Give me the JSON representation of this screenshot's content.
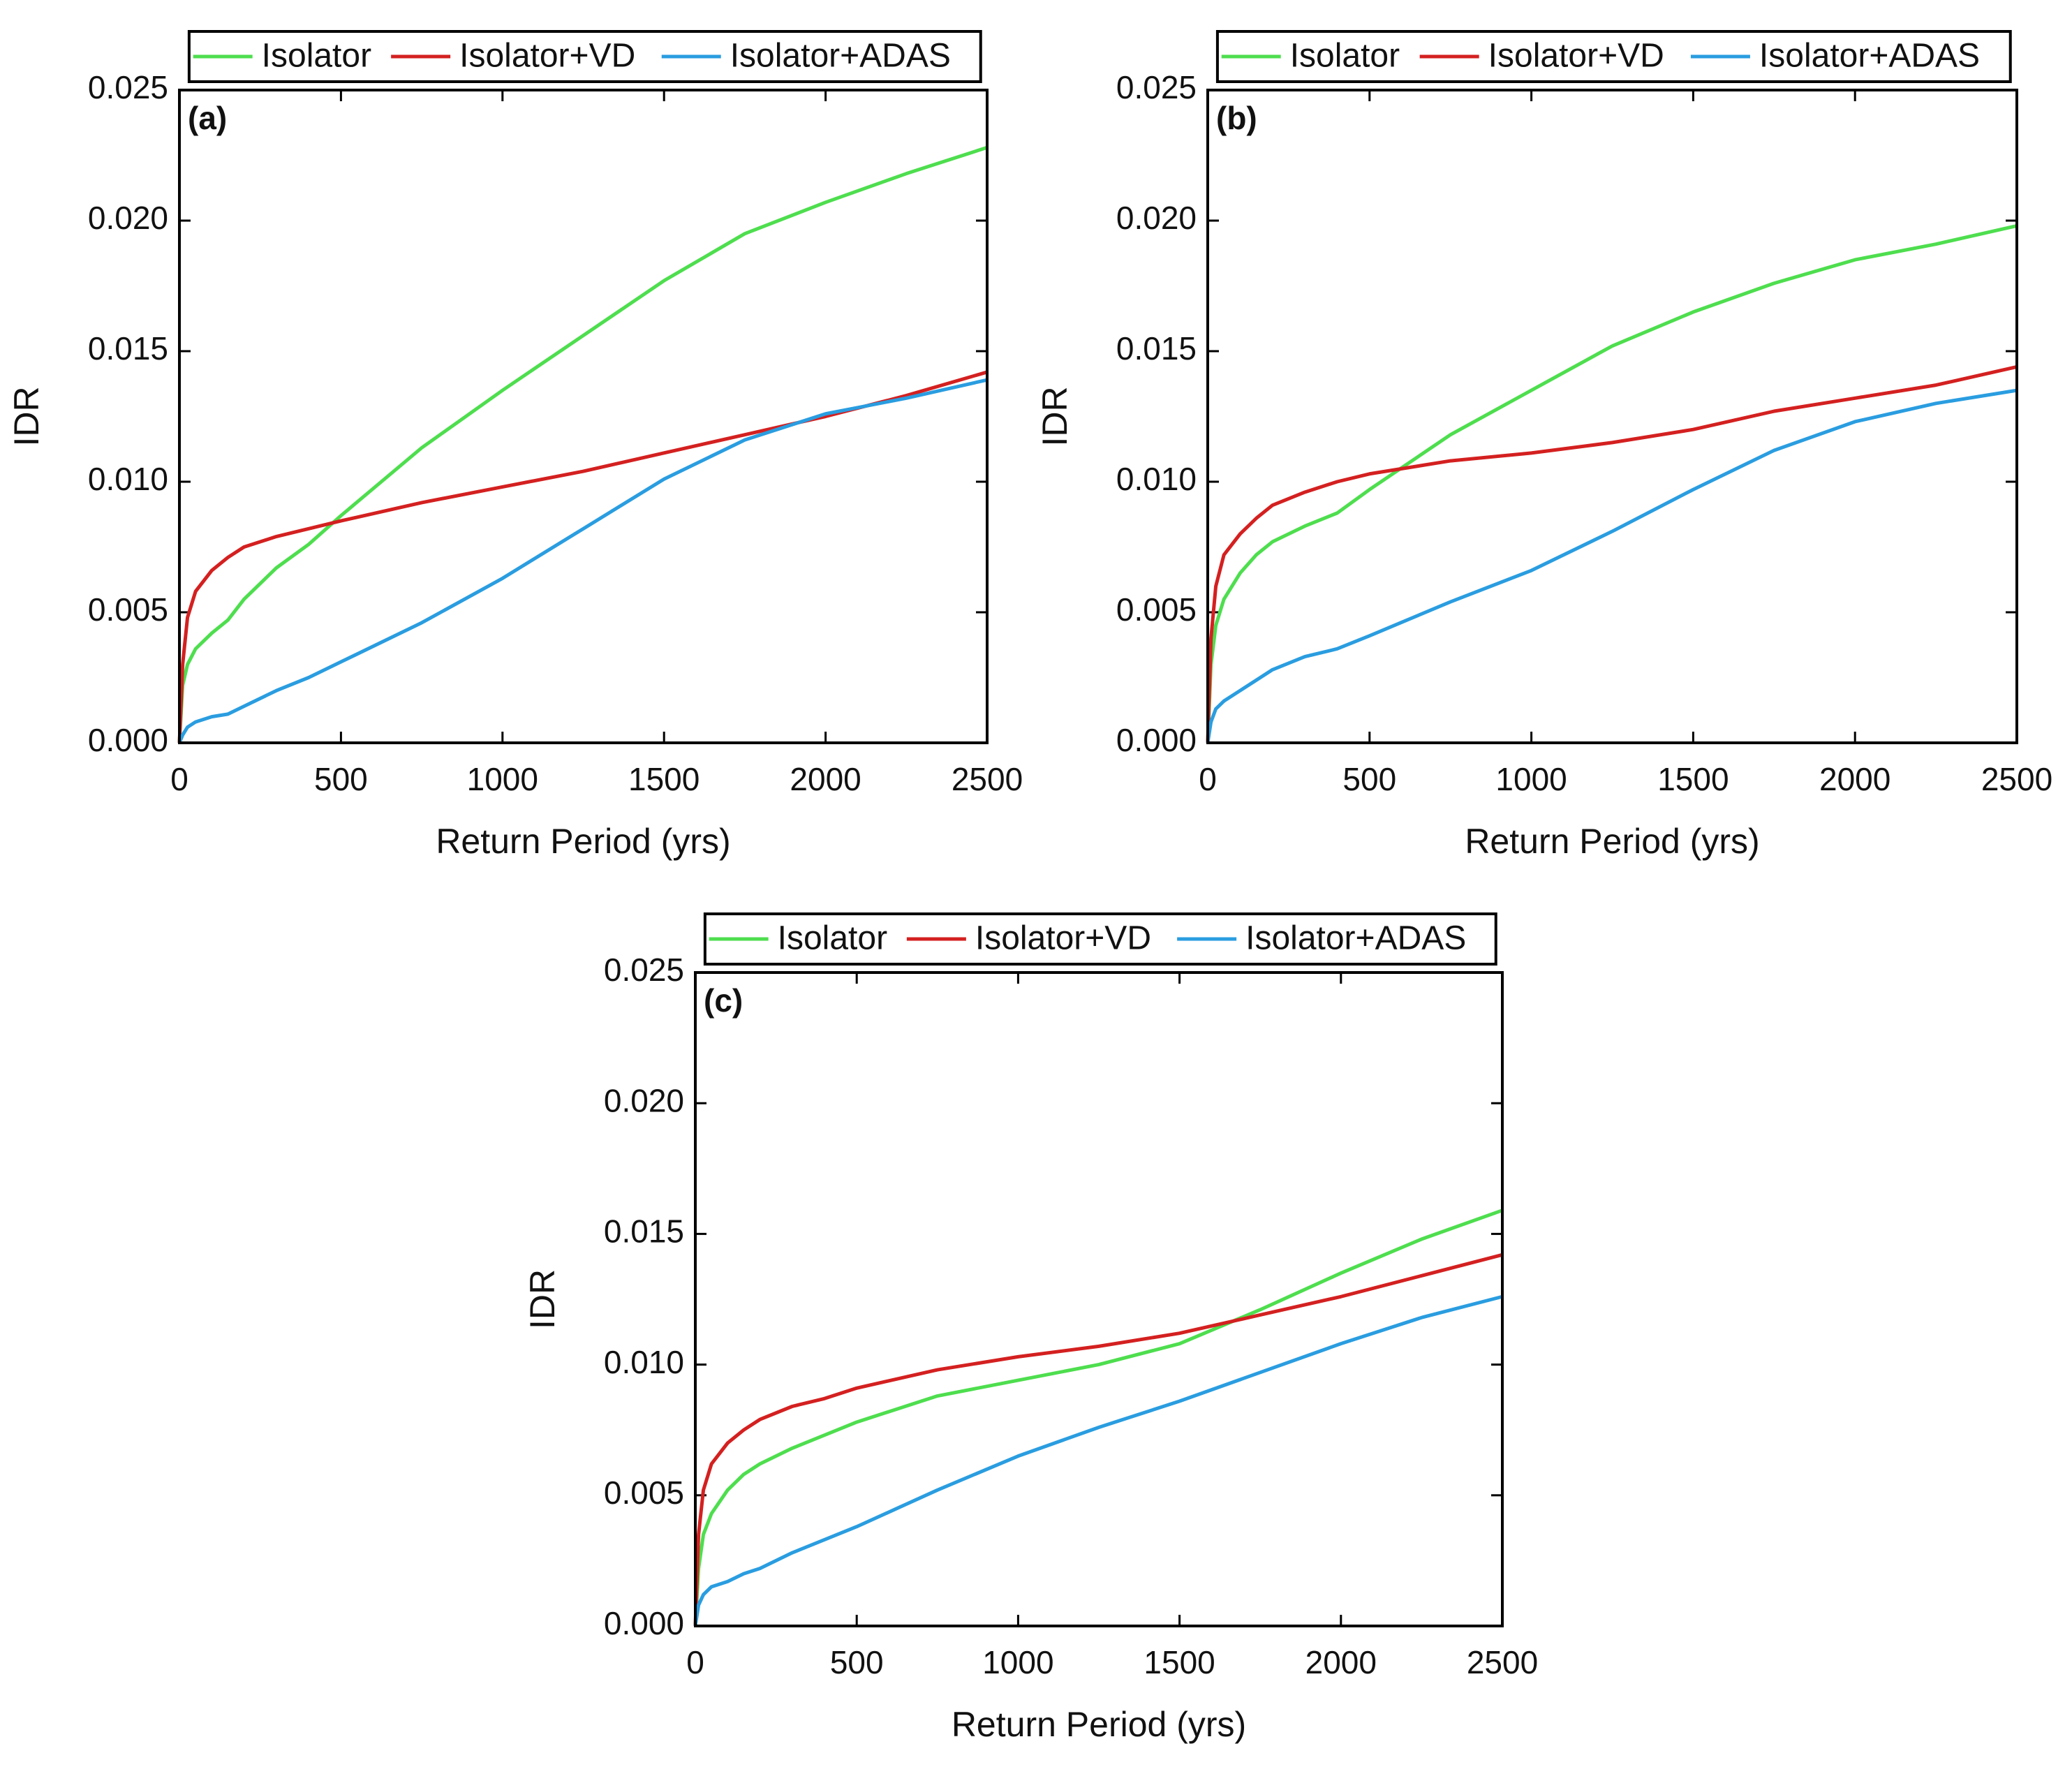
{
  "chart_data": [
    {
      "type": "line",
      "panel_label": "(a)",
      "xlabel": "Return Period (yrs)",
      "ylabel": "IDR",
      "x": [
        0,
        10,
        25,
        50,
        100,
        150,
        200,
        300,
        400,
        500,
        750,
        1000,
        1250,
        1500,
        1750,
        2000,
        2250,
        2500
      ],
      "series": [
        {
          "name": "Isolator",
          "color": "#4ede4e",
          "values": [
            0,
            0.0022,
            0.003,
            0.0036,
            0.0042,
            0.0047,
            0.0055,
            0.0067,
            0.0076,
            0.0087,
            0.0113,
            0.0135,
            0.0156,
            0.0177,
            0.0195,
            0.0207,
            0.0218,
            0.0228
          ]
        },
        {
          "name": "Isolator+VD",
          "color": "#d42020",
          "values": [
            0,
            0.003,
            0.0048,
            0.0058,
            0.0066,
            0.0071,
            0.0075,
            0.0079,
            0.0082,
            0.0085,
            0.0092,
            0.0098,
            0.0104,
            0.0111,
            0.0118,
            0.0125,
            0.0133,
            0.0142
          ]
        },
        {
          "name": "Isolator+ADAS",
          "color": "#2a9de0",
          "values": [
            0,
            0.0003,
            0.0006,
            0.0008,
            0.001,
            0.0011,
            0.0014,
            0.002,
            0.0025,
            0.0031,
            0.0046,
            0.0063,
            0.0082,
            0.0101,
            0.0116,
            0.0126,
            0.0132,
            0.0139
          ]
        }
      ],
      "xlim": [
        0,
        2500
      ],
      "xticks": [
        0,
        500,
        1000,
        1500,
        2000,
        2500
      ],
      "ylim": [
        0,
        0.025
      ],
      "yticks": [
        {
          "value": 0,
          "label": "0.000"
        },
        {
          "value": 0.005,
          "label": "0.005"
        },
        {
          "value": 0.01,
          "label": "0.010"
        },
        {
          "value": 0.015,
          "label": "0.015"
        },
        {
          "value": 0.02,
          "label": "0.020"
        },
        {
          "value": 0.025,
          "label": "0.025"
        }
      ],
      "legend": "top"
    },
    {
      "type": "line",
      "panel_label": "(b)",
      "xlabel": "Return Period (yrs)",
      "ylabel": "IDR",
      "x": [
        0,
        10,
        25,
        50,
        100,
        150,
        200,
        300,
        400,
        500,
        750,
        1000,
        1250,
        1500,
        1750,
        2000,
        2250,
        2500
      ],
      "series": [
        {
          "name": "Isolator",
          "color": "#4ede4e",
          "values": [
            0,
            0.003,
            0.0045,
            0.0055,
            0.0065,
            0.0072,
            0.0077,
            0.0083,
            0.0088,
            0.0097,
            0.0118,
            0.0135,
            0.0152,
            0.0165,
            0.0176,
            0.0185,
            0.0191,
            0.0198
          ]
        },
        {
          "name": "Isolator+VD",
          "color": "#d42020",
          "values": [
            0,
            0.004,
            0.006,
            0.0072,
            0.008,
            0.0086,
            0.0091,
            0.0096,
            0.01,
            0.0103,
            0.0108,
            0.0111,
            0.0115,
            0.012,
            0.0127,
            0.0132,
            0.0137,
            0.0144
          ]
        },
        {
          "name": "Isolator+ADAS",
          "color": "#2a9de0",
          "values": [
            0,
            0.0008,
            0.0013,
            0.0016,
            0.002,
            0.0024,
            0.0028,
            0.0033,
            0.0036,
            0.0041,
            0.0054,
            0.0066,
            0.0081,
            0.0097,
            0.0112,
            0.0123,
            0.013,
            0.0135
          ]
        }
      ],
      "xlim": [
        0,
        2500
      ],
      "xticks": [
        0,
        500,
        1000,
        1500,
        2000,
        2500
      ],
      "ylim": [
        0,
        0.025
      ],
      "yticks": [
        {
          "value": 0,
          "label": "0.000"
        },
        {
          "value": 0.005,
          "label": "0.005"
        },
        {
          "value": 0.01,
          "label": "0.010"
        },
        {
          "value": 0.015,
          "label": "0.015"
        },
        {
          "value": 0.02,
          "label": "0.020"
        },
        {
          "value": 0.025,
          "label": "0.025"
        }
      ],
      "legend": "top"
    },
    {
      "type": "line",
      "panel_label": "(c)",
      "xlabel": "Return Period (yrs)",
      "ylabel": "IDR",
      "x": [
        0,
        10,
        25,
        50,
        100,
        150,
        200,
        300,
        400,
        500,
        750,
        1000,
        1250,
        1500,
        1750,
        2000,
        2250,
        2500
      ],
      "series": [
        {
          "name": "Isolator",
          "color": "#4ede4e",
          "values": [
            0,
            0.0022,
            0.0035,
            0.0043,
            0.0052,
            0.0058,
            0.0062,
            0.0068,
            0.0073,
            0.0078,
            0.0088,
            0.0094,
            0.01,
            0.0108,
            0.0121,
            0.0135,
            0.0148,
            0.0159
          ]
        },
        {
          "name": "Isolator+VD",
          "color": "#d42020",
          "values": [
            0,
            0.0035,
            0.0052,
            0.0062,
            0.007,
            0.0075,
            0.0079,
            0.0084,
            0.0087,
            0.0091,
            0.0098,
            0.0103,
            0.0107,
            0.0112,
            0.0119,
            0.0126,
            0.0134,
            0.0142
          ]
        },
        {
          "name": "Isolator+ADAS",
          "color": "#2a9de0",
          "values": [
            0,
            0.0008,
            0.0012,
            0.0015,
            0.0017,
            0.002,
            0.0022,
            0.0028,
            0.0033,
            0.0038,
            0.0052,
            0.0065,
            0.0076,
            0.0086,
            0.0097,
            0.0108,
            0.0118,
            0.0126
          ]
        }
      ],
      "xlim": [
        0,
        2500
      ],
      "xticks": [
        0,
        500,
        1000,
        1500,
        2000,
        2500
      ],
      "ylim": [
        0,
        0.025
      ],
      "yticks": [
        {
          "value": 0,
          "label": "0.000"
        },
        {
          "value": 0.005,
          "label": "0.005"
        },
        {
          "value": 0.01,
          "label": "0.010"
        },
        {
          "value": 0.015,
          "label": "0.015"
        },
        {
          "value": 0.02,
          "label": "0.020"
        },
        {
          "value": 0.025,
          "label": "0.025"
        }
      ],
      "legend": "top"
    }
  ]
}
